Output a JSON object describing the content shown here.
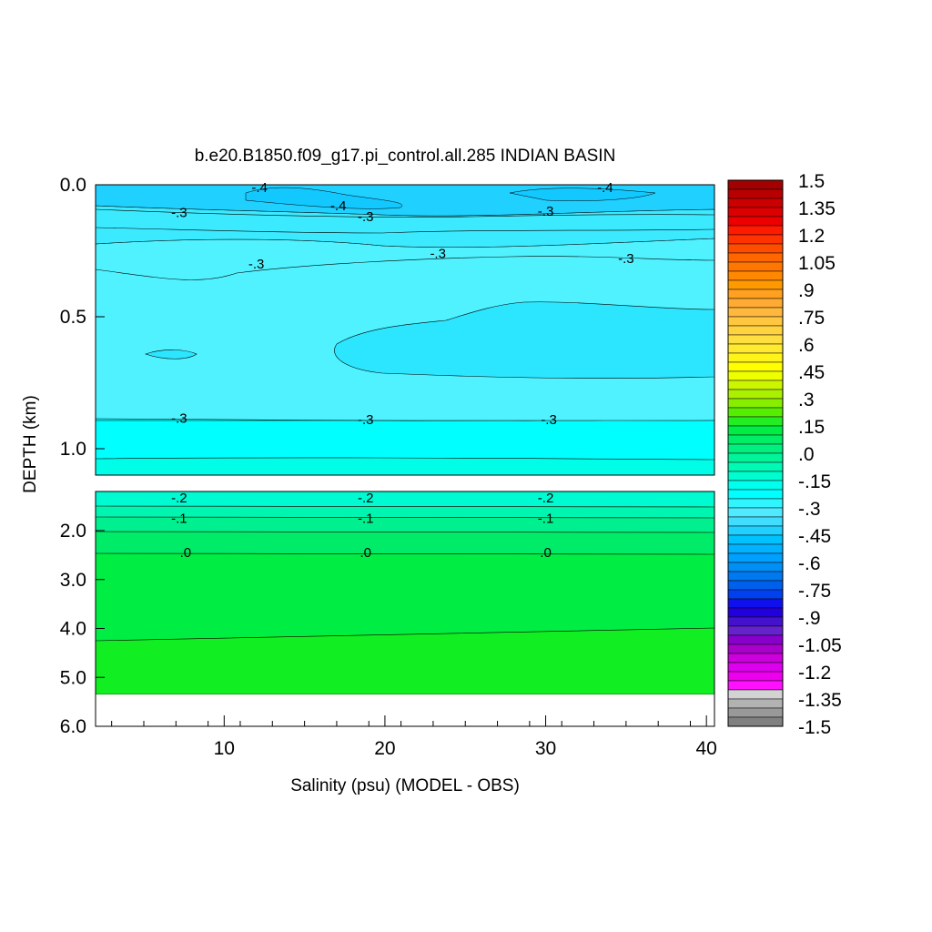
{
  "chart_data": {
    "type": "heatmap",
    "title": "b.e20.B1850.f09_g17.pi_control.all.285 INDIAN BASIN",
    "xlabel": "Salinity (psu) (MODEL - OBS)",
    "ylabel": "DEPTH (km)",
    "xlim": [
      2,
      40.5
    ],
    "upper_panel": {
      "ylim": [
        0.0,
        1.1
      ],
      "ytick_labels": [
        {
          "label": "0.0",
          "value": 0.0
        },
        {
          "label": "0.5",
          "value": 0.5
        },
        {
          "label": "1.0",
          "value": 1.0
        }
      ],
      "contour_labels": [
        {
          "text": "-.4",
          "x": 12.2,
          "y": 0.01
        },
        {
          "text": "-.4",
          "x": 33.7,
          "y": 0.01
        },
        {
          "text": "-.4",
          "x": 17.1,
          "y": 0.08
        },
        {
          "text": "-.3",
          "x": 7.2,
          "y": 0.105
        },
        {
          "text": "-.3",
          "x": 18.8,
          "y": 0.12
        },
        {
          "text": "-.3",
          "x": 30.0,
          "y": 0.1
        },
        {
          "text": "-.3",
          "x": 23.3,
          "y": 0.26
        },
        {
          "text": "-.3",
          "x": 12.0,
          "y": 0.3
        },
        {
          "text": "-.3",
          "x": 35.0,
          "y": 0.28
        },
        {
          "text": "-.3",
          "x": 7.2,
          "y": 0.885
        },
        {
          "text": "-.3",
          "x": 18.8,
          "y": 0.89
        },
        {
          "text": "-.3",
          "x": 30.2,
          "y": 0.89
        }
      ]
    },
    "lower_panel": {
      "ylim": [
        1.2,
        6.0
      ],
      "ytick_labels": [
        {
          "label": "2.0",
          "value": 2.0
        },
        {
          "label": "3.0",
          "value": 3.0
        },
        {
          "label": "4.0",
          "value": 4.0
        },
        {
          "label": "5.0",
          "value": 5.0
        },
        {
          "label": "6.0",
          "value": 6.0
        }
      ],
      "data_bottom_depth": 5.35,
      "contour_labels": [
        {
          "text": "-.2",
          "x": 7.2,
          "y": 1.33
        },
        {
          "text": "-.2",
          "x": 18.8,
          "y": 1.33
        },
        {
          "text": "-.2",
          "x": 30.0,
          "y": 1.33
        },
        {
          "text": "-.1",
          "x": 7.2,
          "y": 1.75
        },
        {
          "text": "-.1",
          "x": 18.8,
          "y": 1.75
        },
        {
          "text": "-.1",
          "x": 30.0,
          "y": 1.75
        },
        {
          "text": ".0",
          "x": 7.6,
          "y": 2.45
        },
        {
          "text": ".0",
          "x": 18.8,
          "y": 2.45
        },
        {
          "text": ".0",
          "x": 30.0,
          "y": 2.45
        }
      ]
    },
    "xticks": [
      {
        "label": "10",
        "value": 10
      },
      {
        "label": "20",
        "value": 20
      },
      {
        "label": "30",
        "value": 30
      },
      {
        "label": "40",
        "value": 40
      }
    ],
    "colorbar": {
      "labels": [
        "1.5",
        "1.35",
        "1.2",
        "1.05",
        ".9",
        ".75",
        ".6",
        ".45",
        ".3",
        ".15",
        ".0",
        "-.15",
        "-.3",
        "-.45",
        "-.6",
        "-.75",
        "-.9",
        "-1.05",
        "-1.2",
        "-1.35",
        "-1.5"
      ],
      "colors": [
        "#a50000",
        "#b80000",
        "#cc0000",
        "#dd0000",
        "#ee0000",
        "#ff1a00",
        "#ff3300",
        "#ff4d00",
        "#ff6600",
        "#ff7700",
        "#ff8800",
        "#ff9900",
        "#ffa020",
        "#ffaa33",
        "#ffb83d",
        "#ffc640",
        "#ffd240",
        "#ffde40",
        "#ffea30",
        "#fff41a",
        "#ffff00",
        "#eeff00",
        "#ccf500",
        "#aaf000",
        "#88ee00",
        "#55ee00",
        "#22ee22",
        "#00ee44",
        "#00ee66",
        "#00f080",
        "#00f59a",
        "#00fab5",
        "#00fdd0",
        "#00ffee",
        "#00ffff",
        "#30f5ff",
        "#4feaff",
        "#40ddff",
        "#20d0ff",
        "#00c2ff",
        "#00b2ff",
        "#00a0ff",
        "#0090f5",
        "#0078f0",
        "#0060ee",
        "#0040ee",
        "#1010ee",
        "#2200dd",
        "#4411cc",
        "#6622cc",
        "#8800cc",
        "#aa00cc",
        "#cc00dd",
        "#dd00ee",
        "#ee00ee",
        "#ff11ff",
        "#d3d3d3",
        "#b2b2b2",
        "#999999",
        "#808080"
      ]
    },
    "field_colors": {
      "band_top_minus045": "#20d0ff",
      "band_minus04": "#3ceaff",
      "band_minus035": "#50f2ff",
      "band_minus03": "#00ffff",
      "band_minus025": "#00fde8",
      "band_minus02": "#00fad2",
      "band_minus015": "#00f5b0",
      "band_minus01": "#00f090",
      "band_minus005": "#00ec68",
      "band_0": "#00ee44",
      "band_005": "#11ee22",
      "missing": "#ffffff"
    }
  }
}
